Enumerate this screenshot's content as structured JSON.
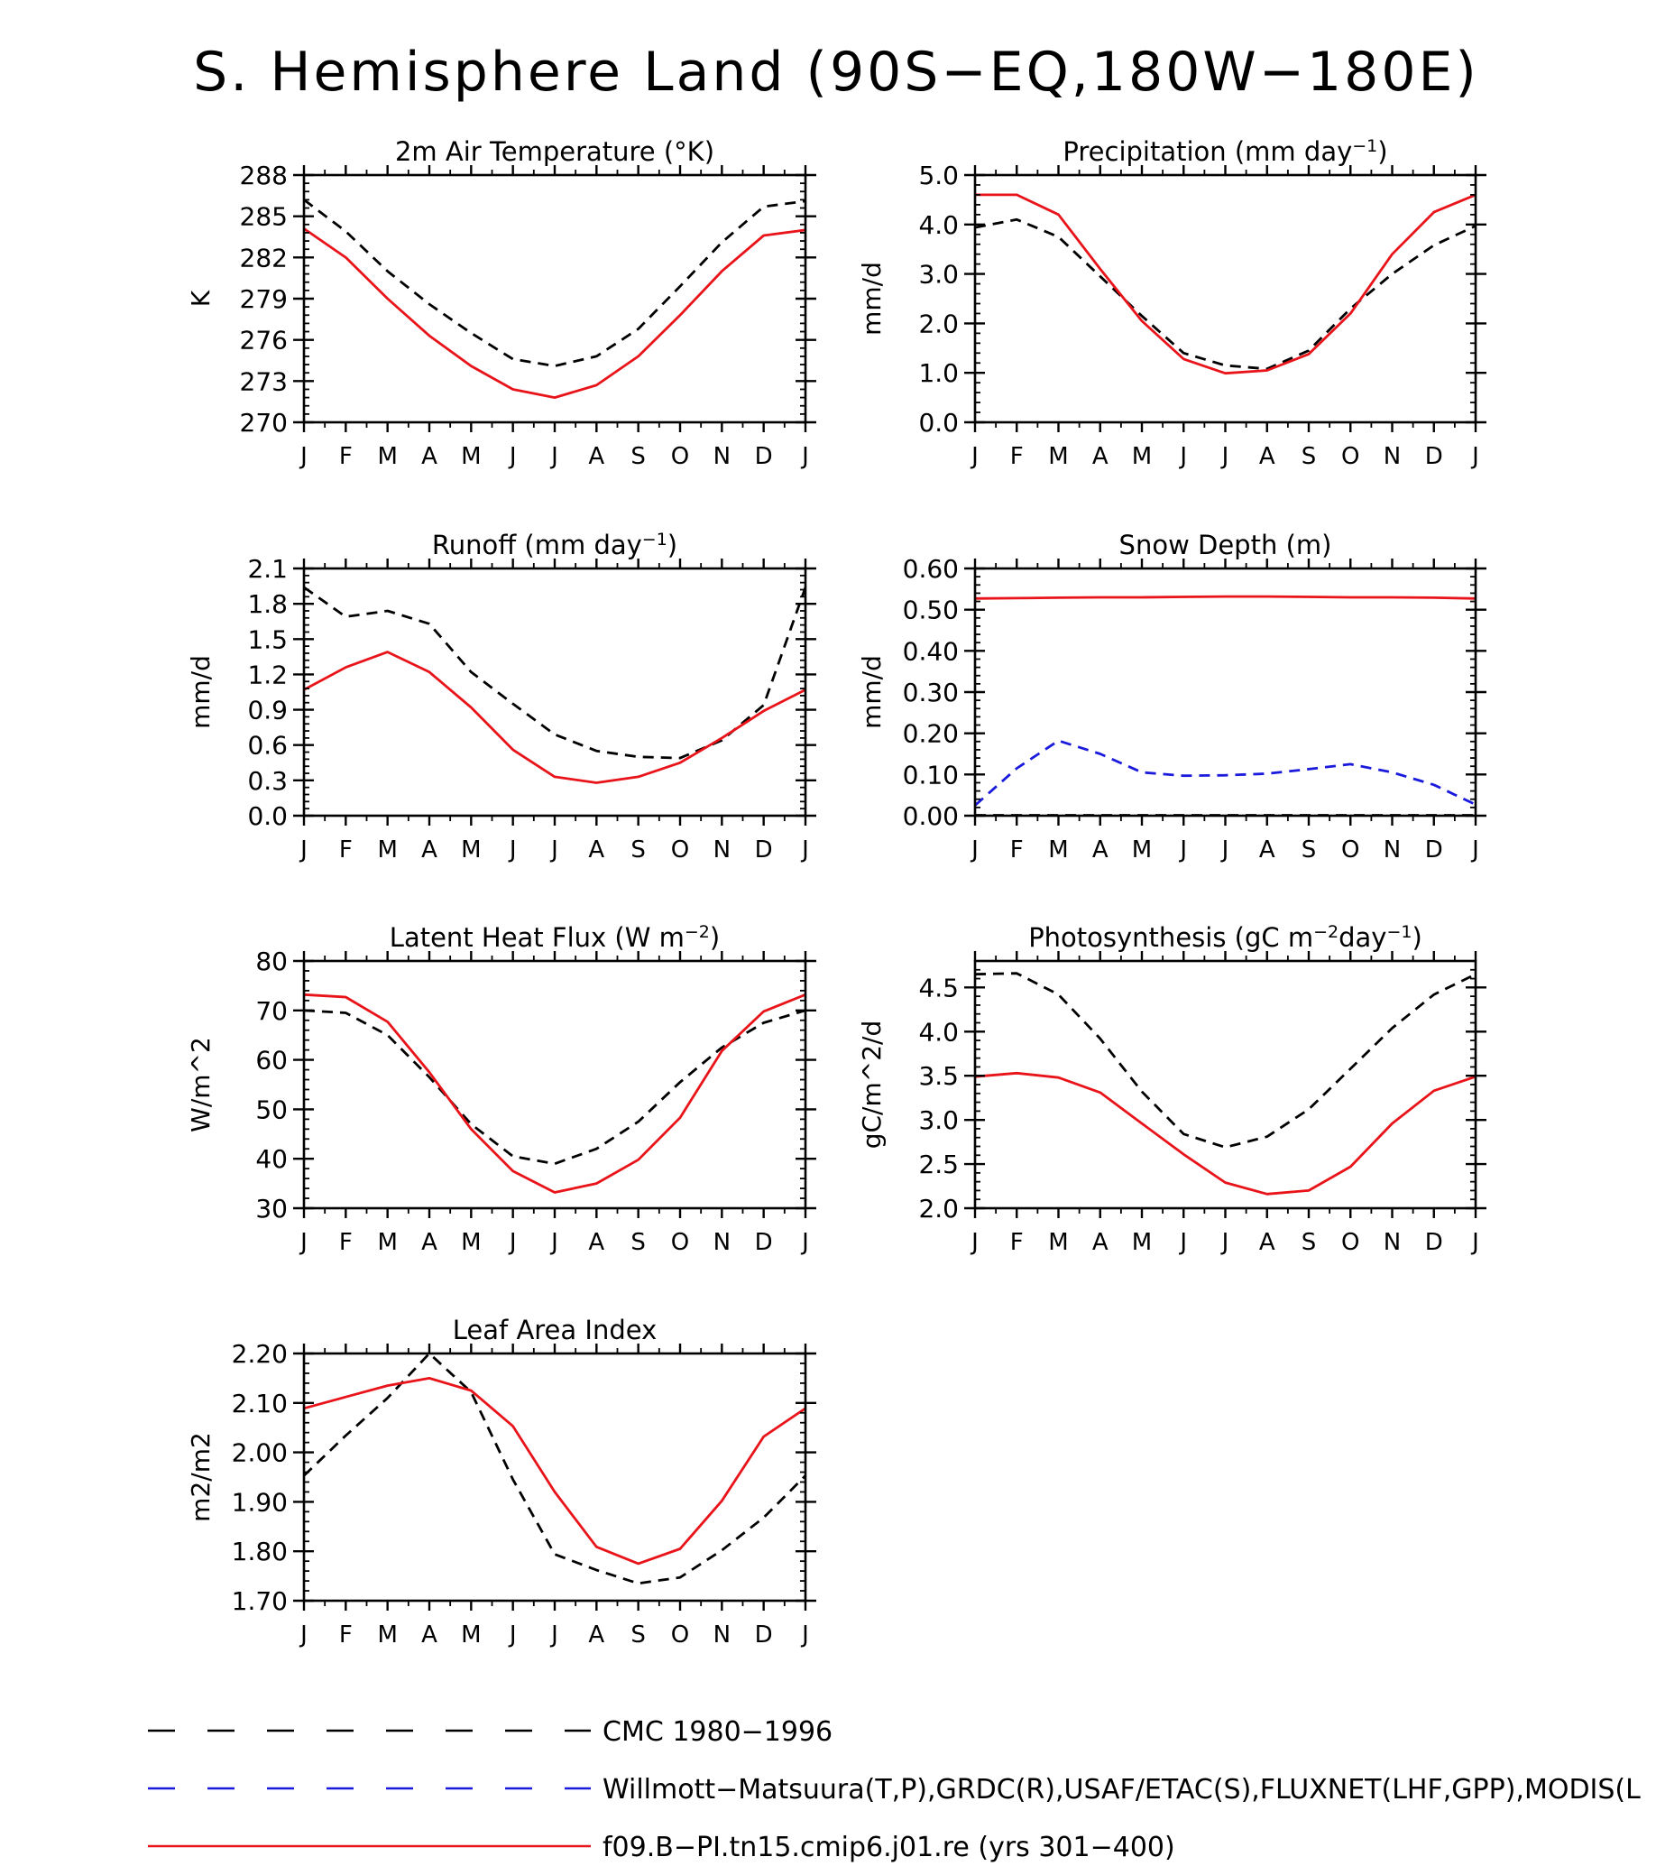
{
  "figure_title": "S. Hemisphere Land (90S−EQ,180W−180E)",
  "colors": {
    "obs_dashed": "#000000",
    "obs_blue": "#1a1adc",
    "model": "#e8141a"
  },
  "legend": [
    {
      "label": "CMC 1980−1996",
      "style": "dashed",
      "color": "#000000"
    },
    {
      "label": "Willmott−Matsuura(T,P),GRDC(R),USAF/ETAC(S),FLUXNET(LHF,GPP),MODIS(L",
      "style": "dashed",
      "color": "#1a1adc"
    },
    {
      "label": "f09.B−PI.tn15.cmip6.j01.re (yrs 301−400)",
      "style": "solid",
      "color": "#e8141a"
    }
  ],
  "chart_data": [
    {
      "type": "line",
      "title": "2m Air Temperature (°K)",
      "title_parts": [
        "2m Air Temperature (°K)"
      ],
      "ylabel": "K",
      "x": [
        "J",
        "F",
        "M",
        "A",
        "M",
        "J",
        "J",
        "A",
        "S",
        "O",
        "N",
        "D",
        "J"
      ],
      "ylim": [
        270,
        288
      ],
      "yticks": [
        270,
        273,
        276,
        279,
        282,
        285,
        288
      ],
      "ytick_labels": [
        "270",
        "273",
        "276",
        "279",
        "282",
        "285",
        "288"
      ],
      "series": [
        {
          "style": "dashed",
          "color": "#000000",
          "values": [
            286.2,
            283.9,
            281.0,
            278.6,
            276.5,
            274.6,
            274.1,
            274.8,
            276.8,
            279.9,
            283.1,
            285.7,
            286.1
          ]
        },
        {
          "style": "solid",
          "color": "#e8141a",
          "values": [
            284.1,
            282.0,
            279.0,
            276.3,
            274.1,
            272.4,
            271.8,
            272.7,
            274.8,
            277.8,
            281.0,
            283.6,
            284.0
          ]
        }
      ]
    },
    {
      "type": "line",
      "title": "Precipitation (mm day⁻¹)",
      "title_parts": [
        "Precipitation (mm day",
        "−1",
        ")"
      ],
      "ylabel": "mm/d",
      "x": [
        "J",
        "F",
        "M",
        "A",
        "M",
        "J",
        "J",
        "A",
        "S",
        "O",
        "N",
        "D",
        "J"
      ],
      "ylim": [
        0,
        5
      ],
      "yticks": [
        0,
        1,
        2,
        3,
        4,
        5
      ],
      "ytick_labels": [
        "0.0",
        "1.0",
        "2.0",
        "3.0",
        "4.0",
        "5.0"
      ],
      "series": [
        {
          "style": "dashed",
          "color": "#000000",
          "values": [
            3.94,
            4.1,
            3.75,
            2.95,
            2.15,
            1.4,
            1.15,
            1.08,
            1.45,
            2.3,
            3.0,
            3.58,
            3.97
          ]
        },
        {
          "style": "solid",
          "color": "#e8141a",
          "values": [
            4.6,
            4.6,
            4.2,
            3.1,
            2.05,
            1.28,
            0.99,
            1.05,
            1.38,
            2.2,
            3.4,
            4.25,
            4.6
          ]
        }
      ]
    },
    {
      "type": "line",
      "title": "Runoff (mm day⁻¹)",
      "title_parts": [
        "Runoff (mm day",
        "−1",
        ")"
      ],
      "ylabel": "mm/d",
      "x": [
        "J",
        "F",
        "M",
        "A",
        "M",
        "J",
        "J",
        "A",
        "S",
        "O",
        "N",
        "D",
        "J"
      ],
      "ylim": [
        0,
        2.1
      ],
      "yticks": [
        0,
        0.3,
        0.6,
        0.9,
        1.2,
        1.5,
        1.8,
        2.1
      ],
      "ytick_labels": [
        "0.0",
        "0.3",
        "0.6",
        "0.9",
        "1.2",
        "1.5",
        "1.8",
        "2.1"
      ],
      "series": [
        {
          "style": "dashed",
          "color": "#000000",
          "values": [
            1.94,
            1.69,
            1.74,
            1.63,
            1.22,
            0.95,
            0.69,
            0.55,
            0.5,
            0.49,
            0.64,
            0.94,
            1.94
          ]
        },
        {
          "style": "solid",
          "color": "#e8141a",
          "values": [
            1.07,
            1.26,
            1.39,
            1.22,
            0.92,
            0.56,
            0.33,
            0.28,
            0.33,
            0.45,
            0.66,
            0.89,
            1.07
          ]
        }
      ]
    },
    {
      "type": "line",
      "title": "Snow Depth (m)",
      "title_parts": [
        "Snow Depth (m)"
      ],
      "ylabel": "mm/d",
      "x": [
        "J",
        "F",
        "M",
        "A",
        "M",
        "J",
        "J",
        "A",
        "S",
        "O",
        "N",
        "D",
        "J"
      ],
      "ylim": [
        0,
        0.6
      ],
      "yticks": [
        0,
        0.1,
        0.2,
        0.3,
        0.4,
        0.5,
        0.6
      ],
      "ytick_labels": [
        "0.00",
        "0.10",
        "0.20",
        "0.30",
        "0.40",
        "0.50",
        "0.60"
      ],
      "series": [
        {
          "style": "dashed",
          "color": "#000000",
          "values": [
            0.001,
            0.001,
            0.001,
            0.001,
            0.001,
            0.001,
            0.001,
            0.001,
            0.001,
            0.001,
            0.001,
            0.001,
            0.001
          ]
        },
        {
          "style": "dashed",
          "color": "#1a1adc",
          "values": [
            0.025,
            0.115,
            0.182,
            0.15,
            0.105,
            0.097,
            0.098,
            0.102,
            0.113,
            0.125,
            0.105,
            0.075,
            0.027
          ]
        },
        {
          "style": "solid",
          "color": "#e8141a",
          "values": [
            0.527,
            0.528,
            0.529,
            0.53,
            0.53,
            0.531,
            0.532,
            0.532,
            0.531,
            0.53,
            0.53,
            0.529,
            0.527
          ]
        }
      ]
    },
    {
      "type": "line",
      "title": "Latent Heat Flux (W m⁻²)",
      "title_parts": [
        "Latent Heat Flux (W m",
        "−2",
        ")"
      ],
      "ylabel": "W/m^2",
      "x": [
        "J",
        "F",
        "M",
        "A",
        "M",
        "J",
        "J",
        "A",
        "S",
        "O",
        "N",
        "D",
        "J"
      ],
      "ylim": [
        30,
        80
      ],
      "yticks": [
        30,
        40,
        50,
        60,
        70,
        80
      ],
      "ytick_labels": [
        "30",
        "40",
        "50",
        "60",
        "70",
        "80"
      ],
      "series": [
        {
          "style": "dashed",
          "color": "#000000",
          "values": [
            70.0,
            69.5,
            65.0,
            56.5,
            47.0,
            40.5,
            39.0,
            42.0,
            47.5,
            55.5,
            62.5,
            67.5,
            70.0
          ]
        },
        {
          "style": "solid",
          "color": "#e8141a",
          "values": [
            73.2,
            72.7,
            67.7,
            57.5,
            46.0,
            37.5,
            33.2,
            35.0,
            39.8,
            48.3,
            61.8,
            69.8,
            73.2
          ]
        }
      ]
    },
    {
      "type": "line",
      "title": "Photosynthesis (gC m⁻²day⁻¹)",
      "title_parts": [
        "Photosynthesis (gC m",
        "−2",
        "day",
        "−1",
        ")"
      ],
      "ylabel": "gC/m^2/d",
      "x": [
        "J",
        "F",
        "M",
        "A",
        "M",
        "J",
        "J",
        "A",
        "S",
        "O",
        "N",
        "D",
        "J"
      ],
      "ylim": [
        2.0,
        4.8
      ],
      "yticks": [
        2.0,
        2.5,
        3.0,
        3.5,
        4.0,
        4.5
      ],
      "ytick_labels": [
        "2.0",
        "2.5",
        "3.0",
        "3.5",
        "4.0",
        "4.5"
      ],
      "series": [
        {
          "style": "dashed",
          "color": "#000000",
          "values": [
            4.65,
            4.66,
            4.42,
            3.92,
            3.32,
            2.84,
            2.69,
            2.81,
            3.12,
            3.58,
            4.04,
            4.42,
            4.65
          ]
        },
        {
          "style": "solid",
          "color": "#e8141a",
          "values": [
            3.49,
            3.53,
            3.48,
            3.31,
            2.96,
            2.61,
            2.29,
            2.16,
            2.2,
            2.47,
            2.96,
            3.33,
            3.49
          ]
        }
      ]
    },
    {
      "type": "line",
      "title": "Leaf Area Index",
      "title_parts": [
        "Leaf Area Index"
      ],
      "ylabel": "m2/m2",
      "x": [
        "J",
        "F",
        "M",
        "A",
        "M",
        "J",
        "J",
        "A",
        "S",
        "O",
        "N",
        "D",
        "J"
      ],
      "ylim": [
        1.7,
        2.2
      ],
      "yticks": [
        1.7,
        1.8,
        1.9,
        2.0,
        2.1,
        2.2
      ],
      "ytick_labels": [
        "1.70",
        "1.80",
        "1.90",
        "2.00",
        "2.10",
        "2.20"
      ],
      "series": [
        {
          "style": "dashed",
          "color": "#000000",
          "values": [
            1.953,
            2.034,
            2.11,
            2.2,
            2.122,
            1.945,
            1.794,
            1.762,
            1.735,
            1.747,
            1.802,
            1.868,
            1.953
          ]
        },
        {
          "style": "solid",
          "color": "#e8141a",
          "values": [
            2.089,
            2.112,
            2.135,
            2.15,
            2.125,
            2.053,
            1.92,
            1.809,
            1.775,
            1.805,
            1.902,
            2.032,
            2.089
          ]
        }
      ]
    }
  ]
}
